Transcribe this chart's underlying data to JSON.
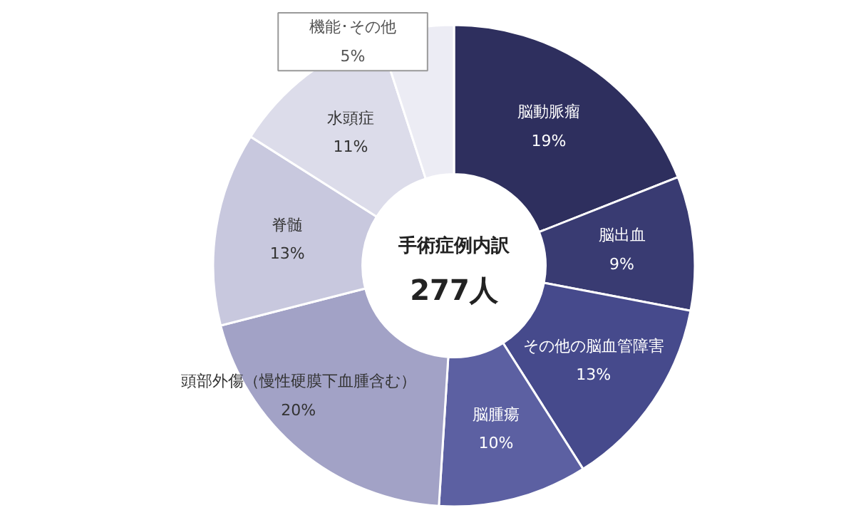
{
  "chart_data": {
    "type": "donut",
    "title": "手術症例内訳",
    "annotations": [
      "277人"
    ],
    "categories": [
      "脳動脈瘤",
      "脳出血",
      "その他の脳血管障害",
      "脳腫瘍",
      "頭部外傷（慢性硬膜下血腫含む）",
      "脊髄",
      "水頭症",
      "機能･その他"
    ],
    "values": [
      19,
      9,
      13,
      10,
      20,
      13,
      11,
      5
    ],
    "value_labels": [
      "19%",
      "9%",
      "13%",
      "10%",
      "20%",
      "13%",
      "11%",
      "5%"
    ],
    "colors": [
      "#2e2f5e",
      "#393b72",
      "#464a8c",
      "#5c60a2",
      "#a2a2c6",
      "#c8c8de",
      "#dcdcea",
      "#ececf4"
    ]
  }
}
